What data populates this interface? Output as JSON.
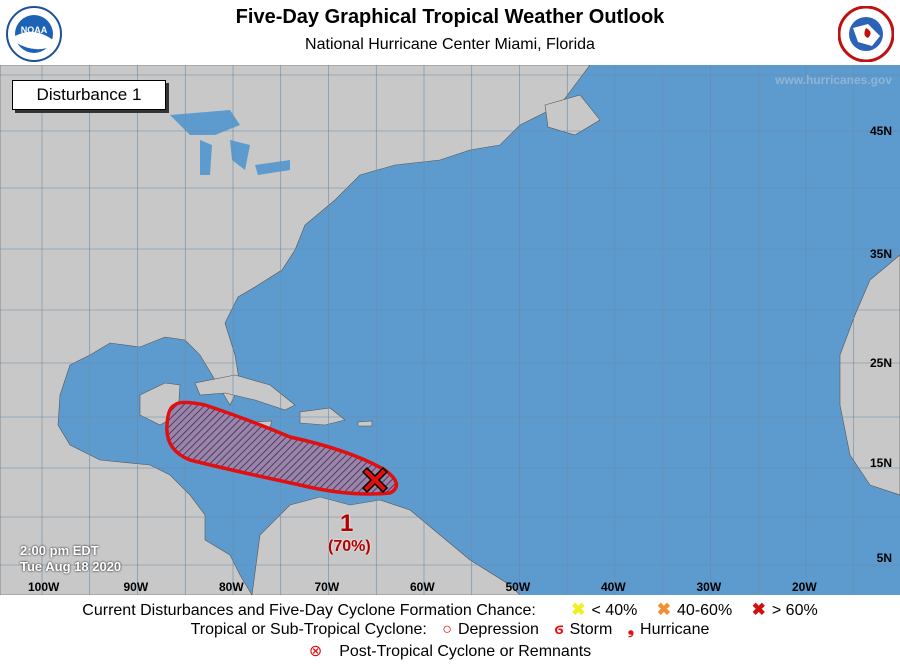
{
  "header": {
    "title": "Five-Day Graphical Tropical Weather Outlook",
    "subtitle": "National Hurricane Center  Miami, Florida",
    "left_logo": "NOAA",
    "right_logo": "National Weather Service"
  },
  "map": {
    "disturbance_box": "Disturbance 1",
    "website": "www.hurricanes.gov",
    "time": "2:00 pm EDT",
    "date": "Tue Aug 18 2020",
    "longitude_labels": [
      "100W",
      "90W",
      "80W",
      "70W",
      "60W",
      "50W",
      "40W",
      "30W",
      "20W"
    ],
    "latitude_labels": [
      "45N",
      "35N",
      "25N",
      "15N",
      "5N"
    ],
    "ocean_color": "#5d9bcf",
    "land_color": "#c8c8c8",
    "disturbance": {
      "number": "1",
      "chance": "(70%)",
      "area_color": "#e01010",
      "marker_color": "#e01010"
    }
  },
  "legend": {
    "row1_label": "Current Disturbances and Five-Day Cyclone Formation Chance:",
    "low": "< 40%",
    "medium": "40-60%",
    "high": "> 60%",
    "low_color": "#f0f020",
    "medium_color": "#f09030",
    "high_color": "#d01010",
    "row2_label": "Tropical or Sub-Tropical Cyclone:",
    "depression": "Depression",
    "storm": "Storm",
    "hurricane": "Hurricane",
    "row3_label": "Post-Tropical Cyclone or Remnants"
  }
}
